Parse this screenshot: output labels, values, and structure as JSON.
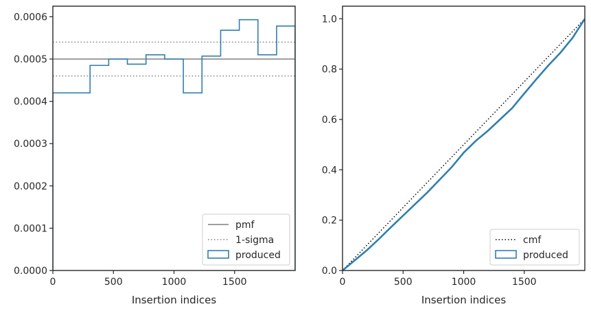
{
  "chart_data": [
    {
      "type": "step",
      "xlabel": "Insertion indices",
      "ylabel": "",
      "xlim": [
        0,
        2000
      ],
      "ylim": [
        0,
        0.000625
      ],
      "xticks": [
        0,
        500,
        1000,
        1500
      ],
      "xtick_labels": [
        "0",
        "500",
        "1000",
        "1500"
      ],
      "yticks": [
        0,
        0.0001,
        0.0002,
        0.0003,
        0.0004,
        0.0005,
        0.0006
      ],
      "ytick_labels": [
        "0.0000",
        "0.0001",
        "0.0002",
        "0.0003",
        "0.0004",
        "0.0005",
        "0.0006"
      ],
      "reference_lines": [
        {
          "name": "pmf",
          "y": 0.0005,
          "style": "solid",
          "color": "#7f7f7f"
        },
        {
          "name": "1-sigma",
          "y": 0.00054,
          "style": "dotted",
          "color": "#7f7f7f"
        },
        {
          "name": "1-sigma",
          "y": 0.00046,
          "style": "dotted",
          "color": "#7f7f7f"
        }
      ],
      "histogram": {
        "name": "produced",
        "color": "#2f7fae",
        "bin_edges": [
          0,
          307,
          461,
          615,
          769,
          923,
          1077,
          1231,
          1385,
          1539,
          1693,
          1847,
          2000
        ],
        "values": [
          0.00042,
          0.000485,
          0.0005,
          0.000488,
          0.00051,
          0.0005,
          0.00042,
          0.000507,
          0.000568,
          0.000593,
          0.00051,
          0.000578
        ]
      },
      "legend": {
        "placement": "lower-right",
        "entries": [
          {
            "label": "pmf",
            "kind": "line-solid",
            "color": "#7f7f7f"
          },
          {
            "label": "1-sigma",
            "kind": "line-dotted",
            "color": "#7f7f7f"
          },
          {
            "label": "produced",
            "kind": "patch",
            "color": "#2f7fae"
          }
        ]
      }
    },
    {
      "type": "line",
      "xlabel": "Insertion indices",
      "ylabel": "",
      "xlim": [
        0,
        2000
      ],
      "ylim": [
        0,
        1.05
      ],
      "xticks": [
        0,
        500,
        1000,
        1500
      ],
      "xtick_labels": [
        "0",
        "500",
        "1000",
        "1500"
      ],
      "yticks": [
        0,
        0.2,
        0.4,
        0.6,
        0.8,
        1.0
      ],
      "ytick_labels": [
        "0.0",
        "0.2",
        "0.4",
        "0.6",
        "0.8",
        "1.0"
      ],
      "series": [
        {
          "name": "cmf",
          "style": "dotted",
          "color": "#000000",
          "x": [
            0,
            2000
          ],
          "y": [
            0,
            1.0
          ]
        },
        {
          "name": "produced",
          "style": "solid",
          "color": "#2f7fae",
          "x": [
            0,
            100,
            200,
            300,
            400,
            500,
            600,
            700,
            800,
            900,
            1000,
            1100,
            1200,
            1300,
            1400,
            1500,
            1600,
            1700,
            1800,
            1900,
            2000
          ],
          "y": [
            0,
            0.04,
            0.08,
            0.125,
            0.172,
            0.218,
            0.264,
            0.31,
            0.36,
            0.41,
            0.468,
            0.515,
            0.555,
            0.6,
            0.645,
            0.703,
            0.76,
            0.815,
            0.866,
            0.925,
            1.0
          ]
        }
      ],
      "legend": {
        "placement": "lower-right",
        "entries": [
          {
            "label": "cmf",
            "kind": "line-dotted",
            "color": "#000000"
          },
          {
            "label": "produced",
            "kind": "patch",
            "color": "#2f7fae"
          }
        ]
      }
    }
  ]
}
